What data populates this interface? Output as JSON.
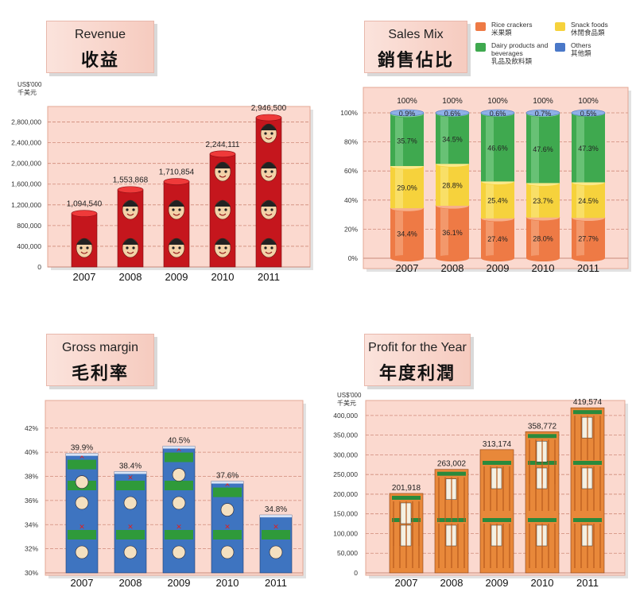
{
  "charts": {
    "revenue": {
      "title_en": "Revenue",
      "title_zh": "收益",
      "unit_en": "US$'000",
      "unit_zh": "千美元"
    },
    "sales_mix": {
      "title_en": "Sales Mix",
      "title_zh": "銷售佔比",
      "legend": [
        {
          "en": "Rice crackers",
          "zh": "米果類",
          "color": "#ee7a45"
        },
        {
          "en": "Snack foods",
          "zh": "休閒食品類",
          "color": "#f6d23c"
        },
        {
          "en": "Dairy products and beverages",
          "zh": "乳品及飲料類",
          "color": "#3fa94f"
        },
        {
          "en": "Others",
          "zh": "其他類",
          "color": "#4a78c8"
        }
      ]
    },
    "gross_margin": {
      "title_en": "Gross margin",
      "title_zh": "毛利率"
    },
    "profit": {
      "title_en": "Profit for the Year",
      "title_zh": "年度利潤",
      "unit_en": "US$'000",
      "unit_zh": "千美元"
    }
  },
  "chart_data": [
    {
      "type": "bar",
      "title": "Revenue 收益",
      "ylabel": "US$'000 千美元",
      "categories": [
        "2007",
        "2008",
        "2009",
        "2010",
        "2011"
      ],
      "values": [
        1094540,
        1553868,
        1710854,
        2244111,
        2946500
      ],
      "value_labels": [
        "1,094,540",
        "1,553,868",
        "1,710,854",
        "2,244,111",
        "2,946,500"
      ],
      "yticks": [
        0,
        400000,
        800000,
        1200000,
        1600000,
        2000000,
        2400000,
        2800000
      ],
      "ytick_labels": [
        "0",
        "400,000",
        "800,000",
        "1,200,000",
        "1,600,000",
        "2,000,000",
        "2,400,000",
        "2,800,000"
      ],
      "ylim": [
        0,
        3100000
      ],
      "grid": true
    },
    {
      "type": "bar",
      "stacked": true,
      "title": "Sales Mix 銷售佔比",
      "categories": [
        "2007",
        "2008",
        "2009",
        "2010",
        "2011"
      ],
      "series": [
        {
          "name": "Rice crackers 米果類",
          "values": [
            34.4,
            36.1,
            27.4,
            28.0,
            27.7
          ],
          "labels": [
            "34.4%",
            "36.1%",
            "27.4%",
            "28.0%",
            "27.7%"
          ]
        },
        {
          "name": "Snack foods 休閒食品類",
          "values": [
            29.0,
            28.8,
            25.4,
            23.7,
            24.5
          ],
          "labels": [
            "29.0%",
            "28.8%",
            "25.4%",
            "23.7%",
            "24.5%"
          ]
        },
        {
          "name": "Dairy products and beverages 乳品及飲料類",
          "values": [
            35.7,
            34.5,
            46.6,
            47.6,
            47.3
          ],
          "labels": [
            "35.7%",
            "34.5%",
            "46.6%",
            "47.6%",
            "47.3%"
          ]
        },
        {
          "name": "Others 其他類",
          "values": [
            0.9,
            0.6,
            0.6,
            0.7,
            0.5
          ],
          "labels": [
            "0.9%",
            "0.6%",
            "0.6%",
            "0.7%",
            "0.5%"
          ]
        }
      ],
      "totals": [
        "100%",
        "100%",
        "100%",
        "100%",
        "100%"
      ],
      "yticks": [
        0,
        20,
        40,
        60,
        80,
        100
      ],
      "ytick_labels": [
        "0%",
        "20%",
        "40%",
        "60%",
        "80%",
        "100%"
      ],
      "ylim": [
        0,
        100
      ],
      "legend_position": "top-right",
      "grid": true
    },
    {
      "type": "bar",
      "title": "Gross margin 毛利率",
      "categories": [
        "2007",
        "2008",
        "2009",
        "2010",
        "2011"
      ],
      "values": [
        39.9,
        38.4,
        40.5,
        37.6,
        34.8
      ],
      "value_labels": [
        "39.9%",
        "38.4%",
        "40.5%",
        "37.6%",
        "34.8%"
      ],
      "yticks": [
        30,
        32,
        34,
        36,
        38,
        40,
        42
      ],
      "ytick_labels": [
        "30%",
        "32%",
        "34%",
        "36%",
        "38%",
        "40%",
        "42%"
      ],
      "ylim": [
        30,
        43.5
      ],
      "grid": true
    },
    {
      "type": "bar",
      "title": "Profit for the Year 年度利潤",
      "ylabel": "US$'000 千美元",
      "categories": [
        "2007",
        "2008",
        "2009",
        "2010",
        "2011"
      ],
      "values": [
        201918,
        263002,
        313174,
        358772,
        419574
      ],
      "value_labels": [
        "201,918",
        "263,002",
        "313,174",
        "358,772",
        "419,574"
      ],
      "yticks": [
        0,
        50000,
        100000,
        150000,
        200000,
        250000,
        300000,
        350000,
        400000
      ],
      "ytick_labels": [
        "0",
        "50,000",
        "100,000",
        "150,000",
        "200,000",
        "250,000",
        "300,000",
        "350,000",
        "400,000"
      ],
      "ylim": [
        0,
        430000
      ],
      "grid": true
    }
  ]
}
